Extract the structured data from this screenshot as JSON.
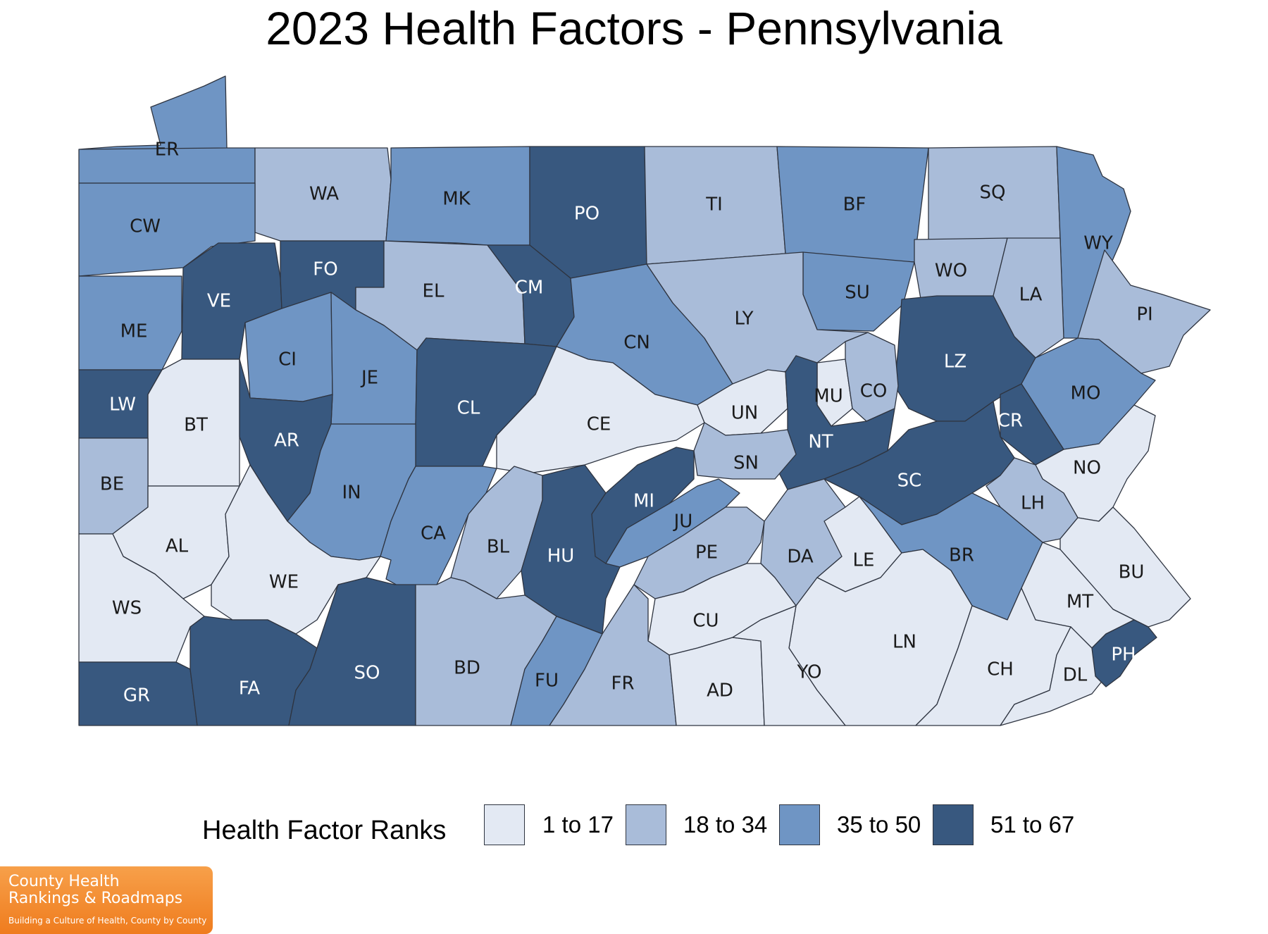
{
  "title": "2023 Health Factors - Pennsylvania",
  "legend": {
    "title": "Health Factor Ranks",
    "bins": [
      {
        "label": "1 to 17",
        "color": "#e3e9f3"
      },
      {
        "label": "18 to 34",
        "color": "#a9bcd9"
      },
      {
        "label": "35 to 50",
        "color": "#6f95c4"
      },
      {
        "label": "51 to 67",
        "color": "#38587f"
      }
    ]
  },
  "counties": [
    {
      "code": "ER",
      "bin": 2
    },
    {
      "code": "WA",
      "bin": 1
    },
    {
      "code": "MK",
      "bin": 2
    },
    {
      "code": "PO",
      "bin": 3
    },
    {
      "code": "TI",
      "bin": 1
    },
    {
      "code": "BF",
      "bin": 2
    },
    {
      "code": "SQ",
      "bin": 1
    },
    {
      "code": "WY",
      "bin": 2
    },
    {
      "code": "CW",
      "bin": 2
    },
    {
      "code": "VE",
      "bin": 3
    },
    {
      "code": "FO",
      "bin": 3
    },
    {
      "code": "EL",
      "bin": 1
    },
    {
      "code": "CM",
      "bin": 3
    },
    {
      "code": "SU",
      "bin": 2
    },
    {
      "code": "WO",
      "bin": 1
    },
    {
      "code": "LA",
      "bin": 1
    },
    {
      "code": "PI",
      "bin": 1
    },
    {
      "code": "ME",
      "bin": 2
    },
    {
      "code": "CI",
      "bin": 2
    },
    {
      "code": "JE",
      "bin": 2
    },
    {
      "code": "CN",
      "bin": 2
    },
    {
      "code": "LY",
      "bin": 1
    },
    {
      "code": "LZ",
      "bin": 3
    },
    {
      "code": "LW",
      "bin": 3
    },
    {
      "code": "BT",
      "bin": 0
    },
    {
      "code": "AR",
      "bin": 3
    },
    {
      "code": "CL",
      "bin": 3
    },
    {
      "code": "CE",
      "bin": 0
    },
    {
      "code": "UN",
      "bin": 0
    },
    {
      "code": "MU",
      "bin": 0
    },
    {
      "code": "CO",
      "bin": 1
    },
    {
      "code": "MO",
      "bin": 2
    },
    {
      "code": "CR",
      "bin": 3
    },
    {
      "code": "NT",
      "bin": 3
    },
    {
      "code": "SN",
      "bin": 1
    },
    {
      "code": "SC",
      "bin": 3
    },
    {
      "code": "BE",
      "bin": 1
    },
    {
      "code": "IN",
      "bin": 2
    },
    {
      "code": "CA",
      "bin": 2
    },
    {
      "code": "BL",
      "bin": 1
    },
    {
      "code": "HU",
      "bin": 3
    },
    {
      "code": "MI",
      "bin": 3
    },
    {
      "code": "JU",
      "bin": 2
    },
    {
      "code": "NO",
      "bin": 0
    },
    {
      "code": "LH",
      "bin": 1
    },
    {
      "code": "AL",
      "bin": 0
    },
    {
      "code": "WE",
      "bin": 0
    },
    {
      "code": "PE",
      "bin": 1
    },
    {
      "code": "DA",
      "bin": 1
    },
    {
      "code": "LE",
      "bin": 0
    },
    {
      "code": "BR",
      "bin": 2
    },
    {
      "code": "BU",
      "bin": 0
    },
    {
      "code": "WS",
      "bin": 0
    },
    {
      "code": "CU",
      "bin": 0
    },
    {
      "code": "LN",
      "bin": 0
    },
    {
      "code": "MT",
      "bin": 0
    },
    {
      "code": "GR",
      "bin": 3
    },
    {
      "code": "FA",
      "bin": 3
    },
    {
      "code": "SO",
      "bin": 3
    },
    {
      "code": "BD",
      "bin": 1
    },
    {
      "code": "FU",
      "bin": 2
    },
    {
      "code": "FR",
      "bin": 1
    },
    {
      "code": "AD",
      "bin": 0
    },
    {
      "code": "YO",
      "bin": 0
    },
    {
      "code": "CH",
      "bin": 0
    },
    {
      "code": "DL",
      "bin": 0
    },
    {
      "code": "PH",
      "bin": 3
    }
  ],
  "logo": {
    "line1": "County Health",
    "line2": "Rankings & Roadmaps",
    "tagline": "Building a Culture of Health, County by County"
  }
}
